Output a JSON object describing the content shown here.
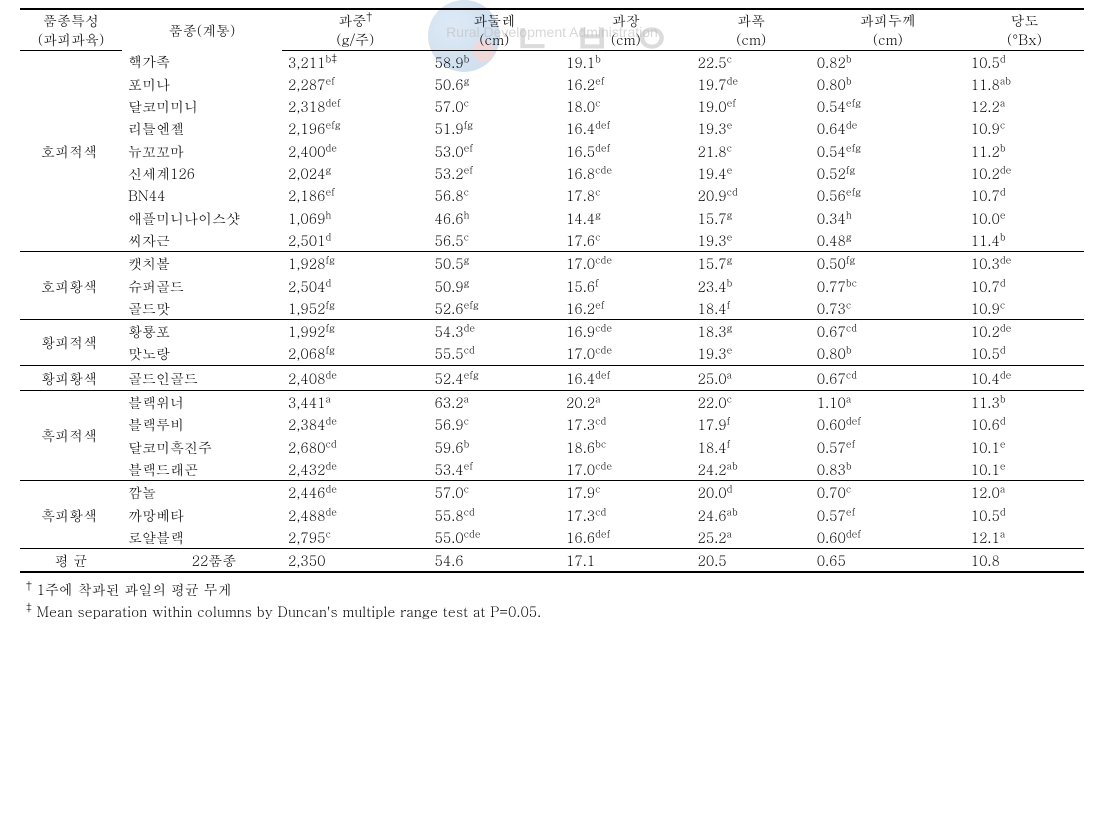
{
  "watermark": {
    "korean": "ㄴ ㅂ ㅇ",
    "english": "Rural Development Administration"
  },
  "headers": {
    "c0a": "품종특성",
    "c0b": "(과피과육)",
    "c1": "품종(계통)",
    "c2a": "과중",
    "c2b": "(g/주)",
    "c3a": "과둘레",
    "c3b": "(cm)",
    "c4a": "과장",
    "c4b": "(cm)",
    "c5a": "과폭",
    "c5b": "(cm)",
    "c6a": "과피두께",
    "c6b": "(cm)",
    "c7a": "당도",
    "c7b": "(°Bx)"
  },
  "super_daggers": {
    "t": "†",
    "d": "‡",
    "td": "†‡"
  },
  "groups": [
    {
      "label": "호피적색",
      "rows": [
        {
          "n": "핵가족",
          "w": "3,211",
          "ws": "b‡",
          "c": "58.9",
          "cs": "b",
          "l": "19.1",
          "ls": "b",
          "wd": "22.5",
          "wds": "c",
          "t": "0.82",
          "ts": "b",
          "b": "10.5",
          "bs": "d"
        },
        {
          "n": "포미나",
          "w": "2,287",
          "ws": "ef",
          "c": "50.6",
          "cs": "g",
          "l": "16.2",
          "ls": "ef",
          "wd": "19.7",
          "wds": "de",
          "t": "0.80",
          "ts": "b",
          "b": "11.8",
          "bs": "ab"
        },
        {
          "n": "달코미미니",
          "w": "2,318",
          "ws": "def",
          "c": "57.0",
          "cs": "c",
          "l": "18.0",
          "ls": "c",
          "wd": "19.0",
          "wds": "ef",
          "t": "0.54",
          "ts": "efg",
          "b": "12.2",
          "bs": "a"
        },
        {
          "n": "리틀엔젤",
          "w": "2,196",
          "ws": "efg",
          "c": "51.9",
          "cs": "fg",
          "l": "16.4",
          "ls": "def",
          "wd": "19.3",
          "wds": "e",
          "t": "0.64",
          "ts": "de",
          "b": "10.9",
          "bs": "c"
        },
        {
          "n": "뉴꼬꼬마",
          "w": "2,400",
          "ws": "de",
          "c": "53.0",
          "cs": "ef",
          "l": "16.5",
          "ls": "def",
          "wd": "21.8",
          "wds": "c",
          "t": "0.54",
          "ts": "efg",
          "b": "11.2",
          "bs": "b"
        },
        {
          "n": "신세계126",
          "w": "2,024",
          "ws": "g",
          "c": "53.2",
          "cs": "ef",
          "l": "16.8",
          "ls": "cde",
          "wd": "19.4",
          "wds": "e",
          "t": "0.52",
          "ts": "fg",
          "b": "10.2",
          "bs": "de"
        },
        {
          "n": "BN44",
          "w": "2,186",
          "ws": "ef",
          "c": "56.8",
          "cs": "c",
          "l": "17.8",
          "ls": "c",
          "wd": "20.9",
          "wds": "cd",
          "t": "0.56",
          "ts": "efg",
          "b": "10.7",
          "bs": "d"
        },
        {
          "n": "애플미니나이스샷",
          "w": "1,069",
          "ws": "h",
          "c": "46.6",
          "cs": "h",
          "l": "14.4",
          "ls": "g",
          "wd": "15.7",
          "wds": "g",
          "t": "0.34",
          "ts": "h",
          "b": "10.0",
          "bs": "e"
        },
        {
          "n": "씨자근",
          "w": "2,501",
          "ws": "d",
          "c": "56.5",
          "cs": "c",
          "l": "17.6",
          "ls": "c",
          "wd": "19.3",
          "wds": "e",
          "t": "0.48",
          "ts": "g",
          "b": "11.4",
          "bs": "b"
        }
      ]
    },
    {
      "label": "호피황색",
      "rows": [
        {
          "n": "캣치볼",
          "w": "1,928",
          "ws": "fg",
          "c": "50.5",
          "cs": "g",
          "l": "17.0",
          "ls": "cde",
          "wd": "15.7",
          "wds": "g",
          "t": "0.50",
          "ts": "fg",
          "b": "10.3",
          "bs": "de"
        },
        {
          "n": "슈퍼골드",
          "w": "2,504",
          "ws": "d",
          "c": "50.9",
          "cs": "g",
          "l": "15.6",
          "ls": "f",
          "wd": "23.4",
          "wds": "b",
          "t": "0.77",
          "ts": "bc",
          "b": "10.7",
          "bs": "d"
        },
        {
          "n": "골드맛",
          "w": "1,952",
          "ws": "fg",
          "c": "52.6",
          "cs": "efg",
          "l": "16.2",
          "ls": "ef",
          "wd": "18.4",
          "wds": "f",
          "t": "0.73",
          "ts": "c",
          "b": "10.9",
          "bs": "c"
        }
      ]
    },
    {
      "label": "황피적색",
      "rows": [
        {
          "n": "황룡포",
          "w": "1,992",
          "ws": "fg",
          "c": "54.3",
          "cs": "de",
          "l": "16.9",
          "ls": "cde",
          "wd": "18.3",
          "wds": "g",
          "t": "0.67",
          "ts": "cd",
          "b": "10.2",
          "bs": "de"
        },
        {
          "n": "맛노랑",
          "w": "2,068",
          "ws": "fg",
          "c": "55.5",
          "cs": "cd",
          "l": "17.0",
          "ls": "cde",
          "wd": "19.3",
          "wds": "e",
          "t": "0.80",
          "ts": "b",
          "b": "10.5",
          "bs": "d"
        }
      ]
    },
    {
      "label": "황피황색",
      "rows": [
        {
          "n": "골드인골드",
          "w": "2,408",
          "ws": "de",
          "c": "52.4",
          "cs": "efg",
          "l": "16.4",
          "ls": "def",
          "wd": "25.0",
          "wds": "a",
          "t": "0.67",
          "ts": "cd",
          "b": "10.4",
          "bs": "de"
        }
      ]
    },
    {
      "label": "흑피적색",
      "rows": [
        {
          "n": "블랙위너",
          "w": "3,441",
          "ws": "a",
          "c": "63.2",
          "cs": "a",
          "l": "20.2",
          "ls": "a",
          "wd": "22.0",
          "wds": "c",
          "t": "1.10",
          "ts": "a",
          "b": "11.3",
          "bs": "b"
        },
        {
          "n": "블랙루비",
          "w": "2,384",
          "ws": "de",
          "c": "56.9",
          "cs": "c",
          "l": "17.3",
          "ls": "cd",
          "wd": "17.9",
          "wds": "f",
          "t": "0.60",
          "ts": "def",
          "b": "10.6",
          "bs": "d"
        },
        {
          "n": "달코미흑진주",
          "w": "2,680",
          "ws": "cd",
          "c": "59.6",
          "cs": "b",
          "l": "18.6",
          "ls": "bc",
          "wd": "18.4",
          "wds": "f",
          "t": "0.57",
          "ts": "ef",
          "b": "10.1",
          "bs": "e"
        },
        {
          "n": "블랙드래곤",
          "w": "2,432",
          "ws": "de",
          "c": "53.4",
          "cs": "ef",
          "l": "17.0",
          "ls": "cde",
          "wd": "24.2",
          "wds": "ab",
          "t": "0.83",
          "ts": "b",
          "b": "10.1",
          "bs": "e"
        }
      ]
    },
    {
      "label": "흑피황색",
      "rows": [
        {
          "n": "깜놀",
          "w": "2,446",
          "ws": "de",
          "c": "57.0",
          "cs": "c",
          "l": "17.9",
          "ls": "c",
          "wd": "20.0",
          "wds": "d",
          "t": "0.70",
          "ts": "c",
          "b": "12.0",
          "bs": "a"
        },
        {
          "n": "까망베타",
          "w": "2,488",
          "ws": "de",
          "c": "55.8",
          "cs": "cd",
          "l": "17.3",
          "ls": "cd",
          "wd": "24.6",
          "wds": "ab",
          "t": "0.57",
          "ts": "ef",
          "b": "10.5",
          "bs": "d"
        },
        {
          "n": "로얄블랙",
          "w": "2,795",
          "ws": "c",
          "c": "55.0",
          "cs": "cde",
          "l": "16.6",
          "ls": "def",
          "wd": "25.2",
          "wds": "a",
          "t": "0.60",
          "ts": "def",
          "b": "12.1",
          "bs": "a"
        }
      ]
    }
  ],
  "average": {
    "label": "평   균",
    "cultivars": "22품종",
    "w": "2,350",
    "c": "54.6",
    "l": "17.1",
    "wd": "20.5",
    "t": "0.65",
    "b": "10.8"
  },
  "footnotes": {
    "f1_sup": "†",
    "f1": " 1주에  착과된  과일의  평균  무게",
    "f2_sup": "‡",
    "f2": " Mean  separation  within  columns  by  Duncan's  multiple  range  test  at  P=0.05."
  }
}
